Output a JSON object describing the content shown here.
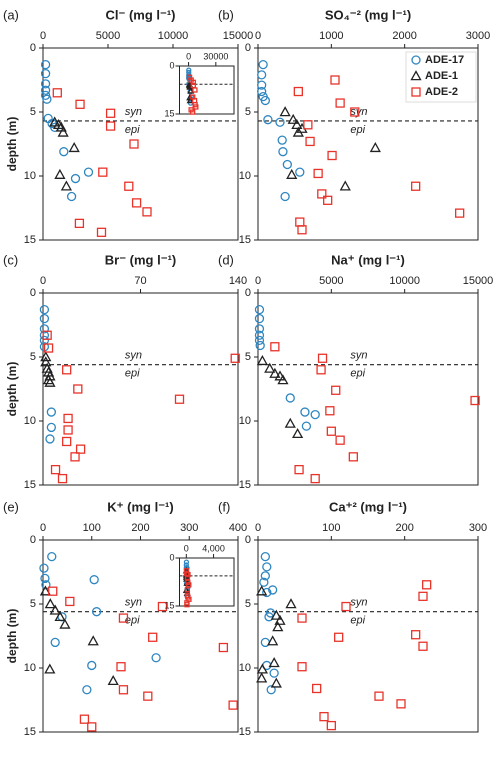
{
  "chart_data": [
    {
      "type": "scatter",
      "panel": "(a)",
      "title": "Cl⁻ (mg l⁻¹)",
      "ylabel": "depth (m)",
      "xlim": [
        0,
        15000
      ],
      "xticks": [
        0,
        5000,
        10000,
        15000
      ],
      "ylim": [
        0,
        15
      ],
      "yticks": [
        0,
        5,
        10,
        15
      ],
      "y_inverted": true,
      "boundary_depth": 5.7,
      "annotations": [
        "syn",
        "epi"
      ],
      "series": [
        {
          "name": "ADE-17",
          "marker": "circle",
          "color": "#2e86c1",
          "x": [
            200,
            200,
            200,
            200,
            200,
            300,
            400,
            700,
            900,
            1600,
            3500,
            2500,
            2200
          ],
          "values": [
            1.3,
            2.0,
            2.8,
            3.3,
            3.7,
            4.0,
            5.5,
            5.9,
            6.2,
            8.1,
            9.7,
            10.2,
            11.6
          ]
        },
        {
          "name": "ADE-1",
          "marker": "triangle",
          "color": "#222222",
          "x": [
            900,
            1200,
            1400,
            1550,
            2400,
            1300,
            1800
          ],
          "values": [
            5.8,
            6.0,
            6.2,
            6.6,
            7.8,
            9.9,
            10.8
          ]
        },
        {
          "name": "ADE-2",
          "marker": "square",
          "color": "#e8332a",
          "x": [
            1100,
            2850,
            5200,
            5200,
            7000,
            4600,
            6600,
            7200,
            8000,
            2800,
            4500
          ],
          "values": [
            3.5,
            4.4,
            5.1,
            6.1,
            7.5,
            9.7,
            10.8,
            12.1,
            12.8,
            13.7,
            14.4
          ]
        }
      ],
      "inset": {
        "xlim": [
          -10000,
          50000
        ],
        "xticks": [
          0,
          30000
        ],
        "ylim": [
          0,
          15
        ],
        "yticks": [
          0,
          15
        ]
      }
    },
    {
      "type": "scatter",
      "panel": "(b)",
      "title": "SO₄⁻² (mg l⁻¹)",
      "xlim": [
        0,
        3000
      ],
      "xticks": [
        0,
        1000,
        2000,
        3000
      ],
      "ylim": [
        0,
        15
      ],
      "yticks": [
        0,
        5,
        10,
        15
      ],
      "y_inverted": true,
      "boundary_depth": 5.7,
      "annotations": [
        "syn",
        "epi"
      ],
      "legend": "upper right",
      "series": [
        {
          "name": "ADE-17",
          "marker": "circle",
          "color": "#2e86c1",
          "x": [
            70,
            50,
            50,
            50,
            70,
            100,
            135,
            300,
            330,
            340,
            400,
            570,
            370
          ],
          "values": [
            1.3,
            2.1,
            2.9,
            3.4,
            3.8,
            4.1,
            5.6,
            5.8,
            7.2,
            8.1,
            9.1,
            9.7,
            11.6
          ]
        },
        {
          "name": "ADE-1",
          "marker": "triangle",
          "color": "#222222",
          "x": [
            370,
            480,
            530,
            600,
            550,
            1600,
            460,
            1190
          ],
          "values": [
            5.0,
            5.6,
            6.0,
            6.3,
            6.6,
            7.8,
            9.9,
            10.8
          ]
        },
        {
          "name": "ADE-2",
          "marker": "square",
          "color": "#e8332a",
          "x": [
            1050,
            550,
            1120,
            1320,
            680,
            710,
            1010,
            820,
            870,
            950,
            2150,
            2750,
            570,
            600
          ],
          "values": [
            2.5,
            3.4,
            4.3,
            5.0,
            6.0,
            7.3,
            8.4,
            9.8,
            11.4,
            11.9,
            10.8,
            12.9,
            13.6,
            14.2
          ]
        }
      ]
    },
    {
      "type": "scatter",
      "panel": "(c)",
      "title": "Br⁻ (mg l⁻¹)",
      "ylabel": "depth (m)",
      "xlim": [
        0,
        140
      ],
      "xticks": [
        0,
        70,
        140
      ],
      "ylim": [
        0,
        15
      ],
      "yticks": [
        0,
        5,
        10,
        15
      ],
      "y_inverted": true,
      "boundary_depth": 5.6,
      "annotations": [
        "syn",
        "epi"
      ],
      "series": [
        {
          "name": "ADE-17",
          "marker": "circle",
          "color": "#2e86c1",
          "x": [
            1,
            1,
            1,
            1,
            1,
            1,
            6,
            6,
            5
          ],
          "values": [
            1.3,
            2.0,
            2.8,
            3.3,
            3.7,
            4.2,
            9.3,
            10.5,
            11.4
          ]
        },
        {
          "name": "ADE-1",
          "marker": "triangle",
          "color": "#222222",
          "x": [
            2,
            2,
            3,
            4,
            5,
            4,
            5
          ],
          "values": [
            5.0,
            5.4,
            5.9,
            6.2,
            6.5,
            6.8,
            7.0
          ]
        },
        {
          "name": "ADE-2",
          "marker": "square",
          "color": "#e8332a",
          "x": [
            3,
            4,
            17,
            25,
            138,
            98,
            18,
            18,
            17,
            27,
            23,
            9,
            14
          ],
          "values": [
            3.3,
            4.3,
            6.0,
            7.5,
            5.1,
            8.3,
            9.8,
            10.7,
            11.6,
            12.2,
            12.8,
            13.8,
            14.5
          ]
        }
      ]
    },
    {
      "type": "scatter",
      "panel": "(d)",
      "title": "Na⁺ (mg l⁻¹)",
      "xlim": [
        0,
        15000
      ],
      "xticks": [
        0,
        5000,
        10000,
        15000
      ],
      "ylim": [
        0,
        15
      ],
      "yticks": [
        0,
        5,
        10,
        15
      ],
      "y_inverted": true,
      "boundary_depth": 5.6,
      "annotations": [
        "syn",
        "epi"
      ],
      "series": [
        {
          "name": "ADE-17",
          "marker": "circle",
          "color": "#2e86c1",
          "x": [
            100,
            100,
            100,
            100,
            100,
            150,
            2200,
            3200,
            3900,
            3300
          ],
          "values": [
            1.3,
            2.0,
            2.8,
            3.3,
            3.7,
            4.1,
            8.2,
            9.3,
            9.5,
            10.4
          ]
        },
        {
          "name": "ADE-1",
          "marker": "triangle",
          "color": "#222222",
          "x": [
            300,
            800,
            1150,
            1500,
            1700,
            2200,
            2700
          ],
          "values": [
            5.3,
            5.9,
            6.3,
            6.5,
            6.8,
            10.2,
            11.0
          ]
        },
        {
          "name": "ADE-2",
          "marker": "square",
          "color": "#e8332a",
          "x": [
            1150,
            4400,
            4300,
            5300,
            4900,
            5000,
            5600,
            6500,
            2800,
            3900,
            14800
          ],
          "values": [
            4.2,
            5.1,
            6.0,
            7.6,
            9.2,
            10.8,
            11.5,
            12.8,
            13.8,
            14.5,
            8.4
          ]
        }
      ]
    },
    {
      "type": "scatter",
      "panel": "(e)",
      "title": "K⁺ (mg l⁻¹)",
      "ylabel": "depth (m)",
      "xlim": [
        0,
        400
      ],
      "xticks": [
        0,
        100,
        200,
        300,
        400
      ],
      "ylim": [
        0,
        15
      ],
      "yticks": [
        0,
        5,
        10,
        15
      ],
      "y_inverted": true,
      "boundary_depth": 5.6,
      "annotations": [
        "syn",
        "epi"
      ],
      "series": [
        {
          "name": "ADE-17",
          "marker": "circle",
          "color": "#2e86c1",
          "x": [
            18,
            2,
            4,
            6,
            105,
            110,
            39,
            25,
            232,
            100,
            90
          ],
          "values": [
            1.3,
            2.2,
            3.0,
            3.5,
            3.1,
            5.6,
            6.0,
            8.0,
            9.2,
            9.8,
            11.7
          ]
        },
        {
          "name": "ADE-1",
          "marker": "triangle",
          "color": "#222222",
          "x": [
            5,
            15,
            25,
            35,
            45,
            103,
            14,
            144
          ],
          "values": [
            4.0,
            5.0,
            5.5,
            6.0,
            6.6,
            7.9,
            10.1,
            11.0
          ]
        },
        {
          "name": "ADE-2",
          "marker": "square",
          "color": "#e8332a",
          "x": [
            20,
            55,
            245,
            165,
            225,
            370,
            160,
            165,
            215,
            85,
            100,
            390
          ],
          "values": [
            4.0,
            4.8,
            5.2,
            6.1,
            7.6,
            8.4,
            9.9,
            11.7,
            12.2,
            14.0,
            14.6,
            12.9
          ]
        }
      ],
      "inset": {
        "xlim": [
          -1000,
          7000
        ],
        "xticks": [
          0,
          {
            "value": 4000,
            "label": "4,000"
          }
        ],
        "ylim": [
          0,
          15
        ],
        "yticks": [
          0,
          15
        ]
      }
    },
    {
      "type": "scatter",
      "panel": "(f)",
      "title": "Ca⁺² (mg l⁻¹)",
      "xlim": [
        0,
        300
      ],
      "xticks": [
        0,
        100,
        200,
        300
      ],
      "ylim": [
        0,
        15
      ],
      "yticks": [
        0,
        5,
        10,
        15
      ],
      "y_inverted": true,
      "boundary_depth": 5.6,
      "annotations": [
        "syn",
        "epi"
      ],
      "series": [
        {
          "name": "ADE-17",
          "marker": "circle",
          "color": "#2e86c1",
          "x": [
            10,
            12,
            10,
            8,
            12,
            20,
            17,
            15,
            10,
            12,
            22,
            18
          ],
          "values": [
            1.3,
            2.1,
            2.8,
            3.3,
            4.1,
            3.9,
            5.7,
            6.0,
            8.0,
            9.8,
            10.4,
            11.7
          ]
        },
        {
          "name": "ADE-1",
          "marker": "triangle",
          "color": "#222222",
          "x": [
            5,
            25,
            30,
            45,
            27,
            20,
            22,
            6,
            5,
            25
          ],
          "values": [
            4.0,
            5.9,
            6.3,
            5.0,
            6.8,
            7.9,
            9.6,
            10.1,
            10.8,
            11.2
          ]
        },
        {
          "name": "ADE-2",
          "marker": "square",
          "color": "#e8332a",
          "x": [
            230,
            225,
            120,
            60,
            215,
            110,
            60,
            225,
            80,
            165,
            195,
            90,
            100
          ],
          "values": [
            3.5,
            4.4,
            5.2,
            6.1,
            7.4,
            7.6,
            9.9,
            8.3,
            11.6,
            12.2,
            12.8,
            13.8,
            14.5
          ]
        }
      ]
    }
  ]
}
